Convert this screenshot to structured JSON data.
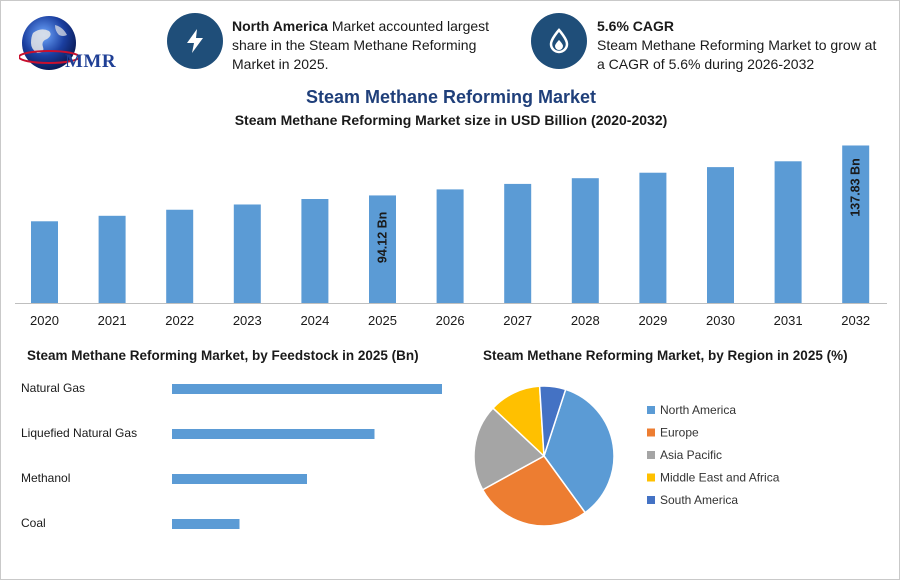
{
  "header": {
    "logo_text": "MMR",
    "block1": {
      "bold": "North America",
      "text": " Market accounted largest share in the Steam Methane Reforming Market in 2025.",
      "icon": "lightning-icon"
    },
    "block2": {
      "title": "5.6% CAGR",
      "text": "Steam Methane Reforming Market to grow at a CAGR of 5.6% during 2026-2032",
      "icon": "flame-drop-icon"
    }
  },
  "colors": {
    "bar": "#5b9bd5",
    "header_icon_bg": "#1f4e79",
    "title": "#1f3f7a"
  },
  "chart_data": [
    {
      "type": "bar",
      "title": "Steam Methane Reforming Market",
      "subtitle": "Steam Methane Reforming Market size in USD Billion (2020-2032)",
      "categories": [
        "2020",
        "2021",
        "2022",
        "2023",
        "2024",
        "2025",
        "2026",
        "2027",
        "2028",
        "2029",
        "2030",
        "2031",
        "2032"
      ],
      "values": [
        71.5,
        76.3,
        81.6,
        86.2,
        91.0,
        94.12,
        99.4,
        104.2,
        109.2,
        114.0,
        118.9,
        124.0,
        137.83
      ],
      "data_labels": {
        "5": "94.12 Bn",
        "12": "137.83 Bn"
      },
      "ylim": [
        0,
        140
      ]
    },
    {
      "type": "bar",
      "orientation": "horizontal",
      "title": "Steam Methane Reforming Market, by Feedstock in 2025 (Bn)",
      "categories": [
        "Natural Gas",
        "Liquefied Natural Gas",
        "Methanol",
        "Coal"
      ],
      "values": [
        60,
        45,
        30,
        15
      ],
      "xlim": [
        0,
        60
      ]
    },
    {
      "type": "pie",
      "title": "Steam Methane Reforming Market, by Region in 2025 (%)",
      "labels": [
        "North America",
        "Europe",
        "Asia Pacific",
        "Middle East and Africa",
        "South America"
      ],
      "values": [
        35,
        27,
        20,
        12,
        6
      ],
      "colors": [
        "#5b9bd5",
        "#ed7d31",
        "#a5a5a5",
        "#ffc000",
        "#4472c4"
      ],
      "legend": "right"
    }
  ]
}
